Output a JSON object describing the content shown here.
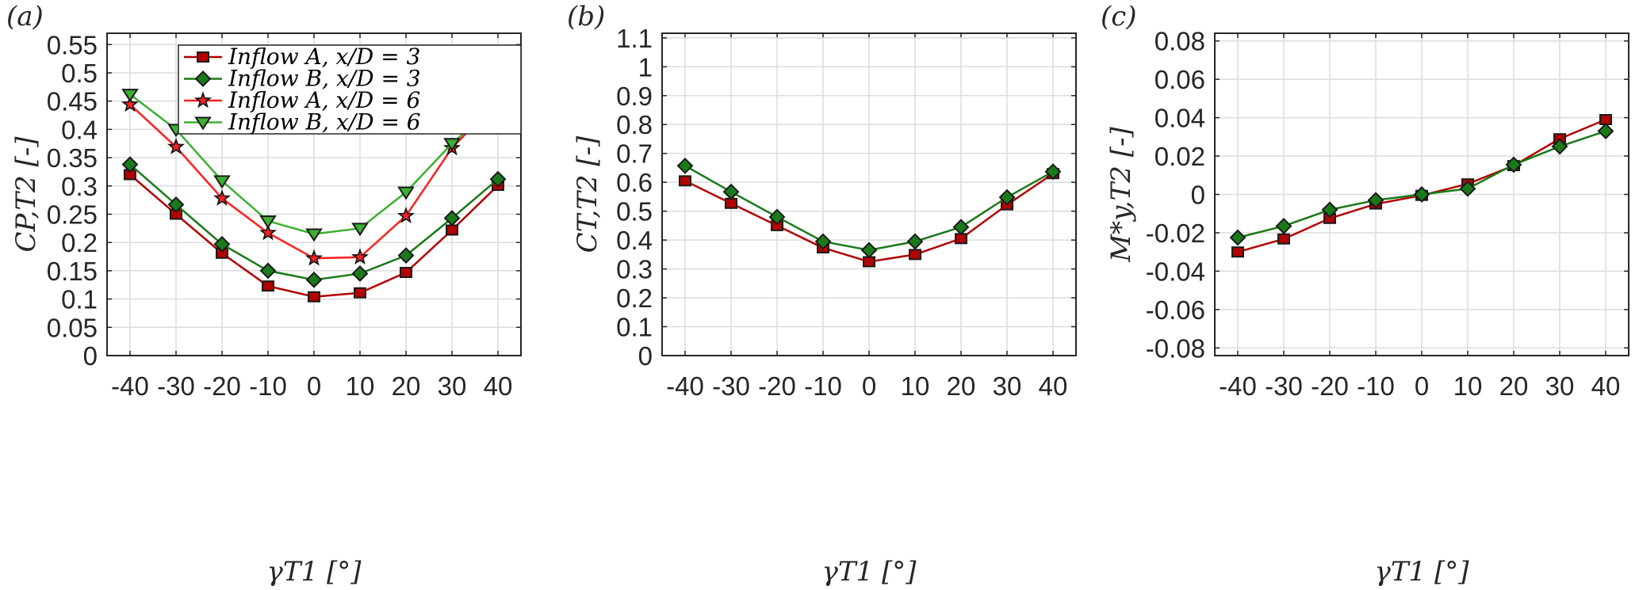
{
  "chart_data": [
    {
      "type": "line",
      "panel_label": "(a)",
      "xlabel": "γT1 [°]",
      "ylabel": "CP,T2 [-]",
      "x": [
        -40,
        -30,
        -20,
        -10,
        0,
        10,
        20,
        30,
        40
      ],
      "xlim": [
        -45,
        45
      ],
      "ylim": [
        0,
        0.57
      ],
      "xticks": [
        "-40",
        "-30",
        "-20",
        "-10",
        "0",
        "10",
        "20",
        "30",
        "40"
      ],
      "yticks": [
        "0",
        "0.05",
        "0.1",
        "0.15",
        "0.2",
        "0.25",
        "0.3",
        "0.35",
        "0.4",
        "0.45",
        "0.5",
        "0.55"
      ],
      "grid": true,
      "legend_position": "top-right",
      "series": [
        {
          "name": "Inflow A, x/D = 3",
          "color": "#b30000",
          "marker": "square",
          "values": [
            0.32,
            0.25,
            0.181,
            0.123,
            0.104,
            0.111,
            0.147,
            0.222,
            0.301
          ]
        },
        {
          "name": "Inflow B, x/D = 3",
          "color": "#1a7a1a",
          "marker": "diamond",
          "values": [
            0.338,
            0.267,
            0.197,
            0.15,
            0.134,
            0.145,
            0.177,
            0.243,
            0.312
          ]
        },
        {
          "name": "Inflow A, x/D = 6",
          "color": "#ff2020",
          "marker": "star",
          "values": [
            0.444,
            0.369,
            0.278,
            0.217,
            0.172,
            0.174,
            0.247,
            0.367,
            0.452
          ]
        },
        {
          "name": "Inflow B, x/D = 6",
          "color": "#3cb030",
          "marker": "triangle-down",
          "values": [
            0.462,
            0.4,
            0.309,
            0.238,
            0.215,
            0.225,
            0.289,
            0.375,
            0.447
          ]
        }
      ]
    },
    {
      "type": "line",
      "panel_label": "(b)",
      "xlabel": "γT1 [°]",
      "ylabel": "CT,T2 [-]",
      "x": [
        -40,
        -30,
        -20,
        -10,
        0,
        10,
        20,
        30,
        40
      ],
      "xlim": [
        -45,
        45
      ],
      "ylim": [
        0,
        1.116
      ],
      "xticks": [
        "-40",
        "-30",
        "-20",
        "-10",
        "0",
        "10",
        "20",
        "30",
        "40"
      ],
      "yticks": [
        "0",
        "0.1",
        "0.2",
        "0.3",
        "0.4",
        "0.5",
        "0.6",
        "0.7",
        "0.8",
        "0.9",
        "1",
        "1.1"
      ],
      "grid": true,
      "series": [
        {
          "color": "#b30000",
          "marker": "square",
          "values": [
            0.605,
            0.527,
            0.45,
            0.373,
            0.325,
            0.35,
            0.405,
            0.522,
            0.63
          ]
        },
        {
          "color": "#1a7a1a",
          "marker": "diamond",
          "values": [
            0.657,
            0.567,
            0.48,
            0.395,
            0.365,
            0.395,
            0.445,
            0.548,
            0.637
          ]
        }
      ]
    },
    {
      "type": "line",
      "panel_label": "(c)",
      "xlabel": "γT1 [°]",
      "ylabel": "M*y,T2 [-]",
      "x": [
        -40,
        -30,
        -20,
        -10,
        0,
        10,
        20,
        30,
        40
      ],
      "xlim": [
        -45,
        45
      ],
      "ylim": [
        -0.084,
        0.084
      ],
      "xticks": [
        "-40",
        "-30",
        "-20",
        "-10",
        "0",
        "10",
        "20",
        "30",
        "40"
      ],
      "yticks": [
        "-0.08",
        "-0.06",
        "-0.04",
        "-0.02",
        "0",
        "0.02",
        "0.04",
        "0.06",
        "0.08"
      ],
      "grid": true,
      "series": [
        {
          "color": "#b30000",
          "marker": "square",
          "values": [
            -0.03,
            -0.0232,
            -0.0125,
            -0.005,
            -0.0005,
            0.0055,
            0.015,
            0.029,
            0.039
          ]
        },
        {
          "color": "#1a7a1a",
          "marker": "diamond",
          "values": [
            -0.0225,
            -0.0165,
            -0.008,
            -0.003,
            0.0,
            0.003,
            0.0155,
            0.025,
            0.033
          ]
        }
      ]
    }
  ]
}
